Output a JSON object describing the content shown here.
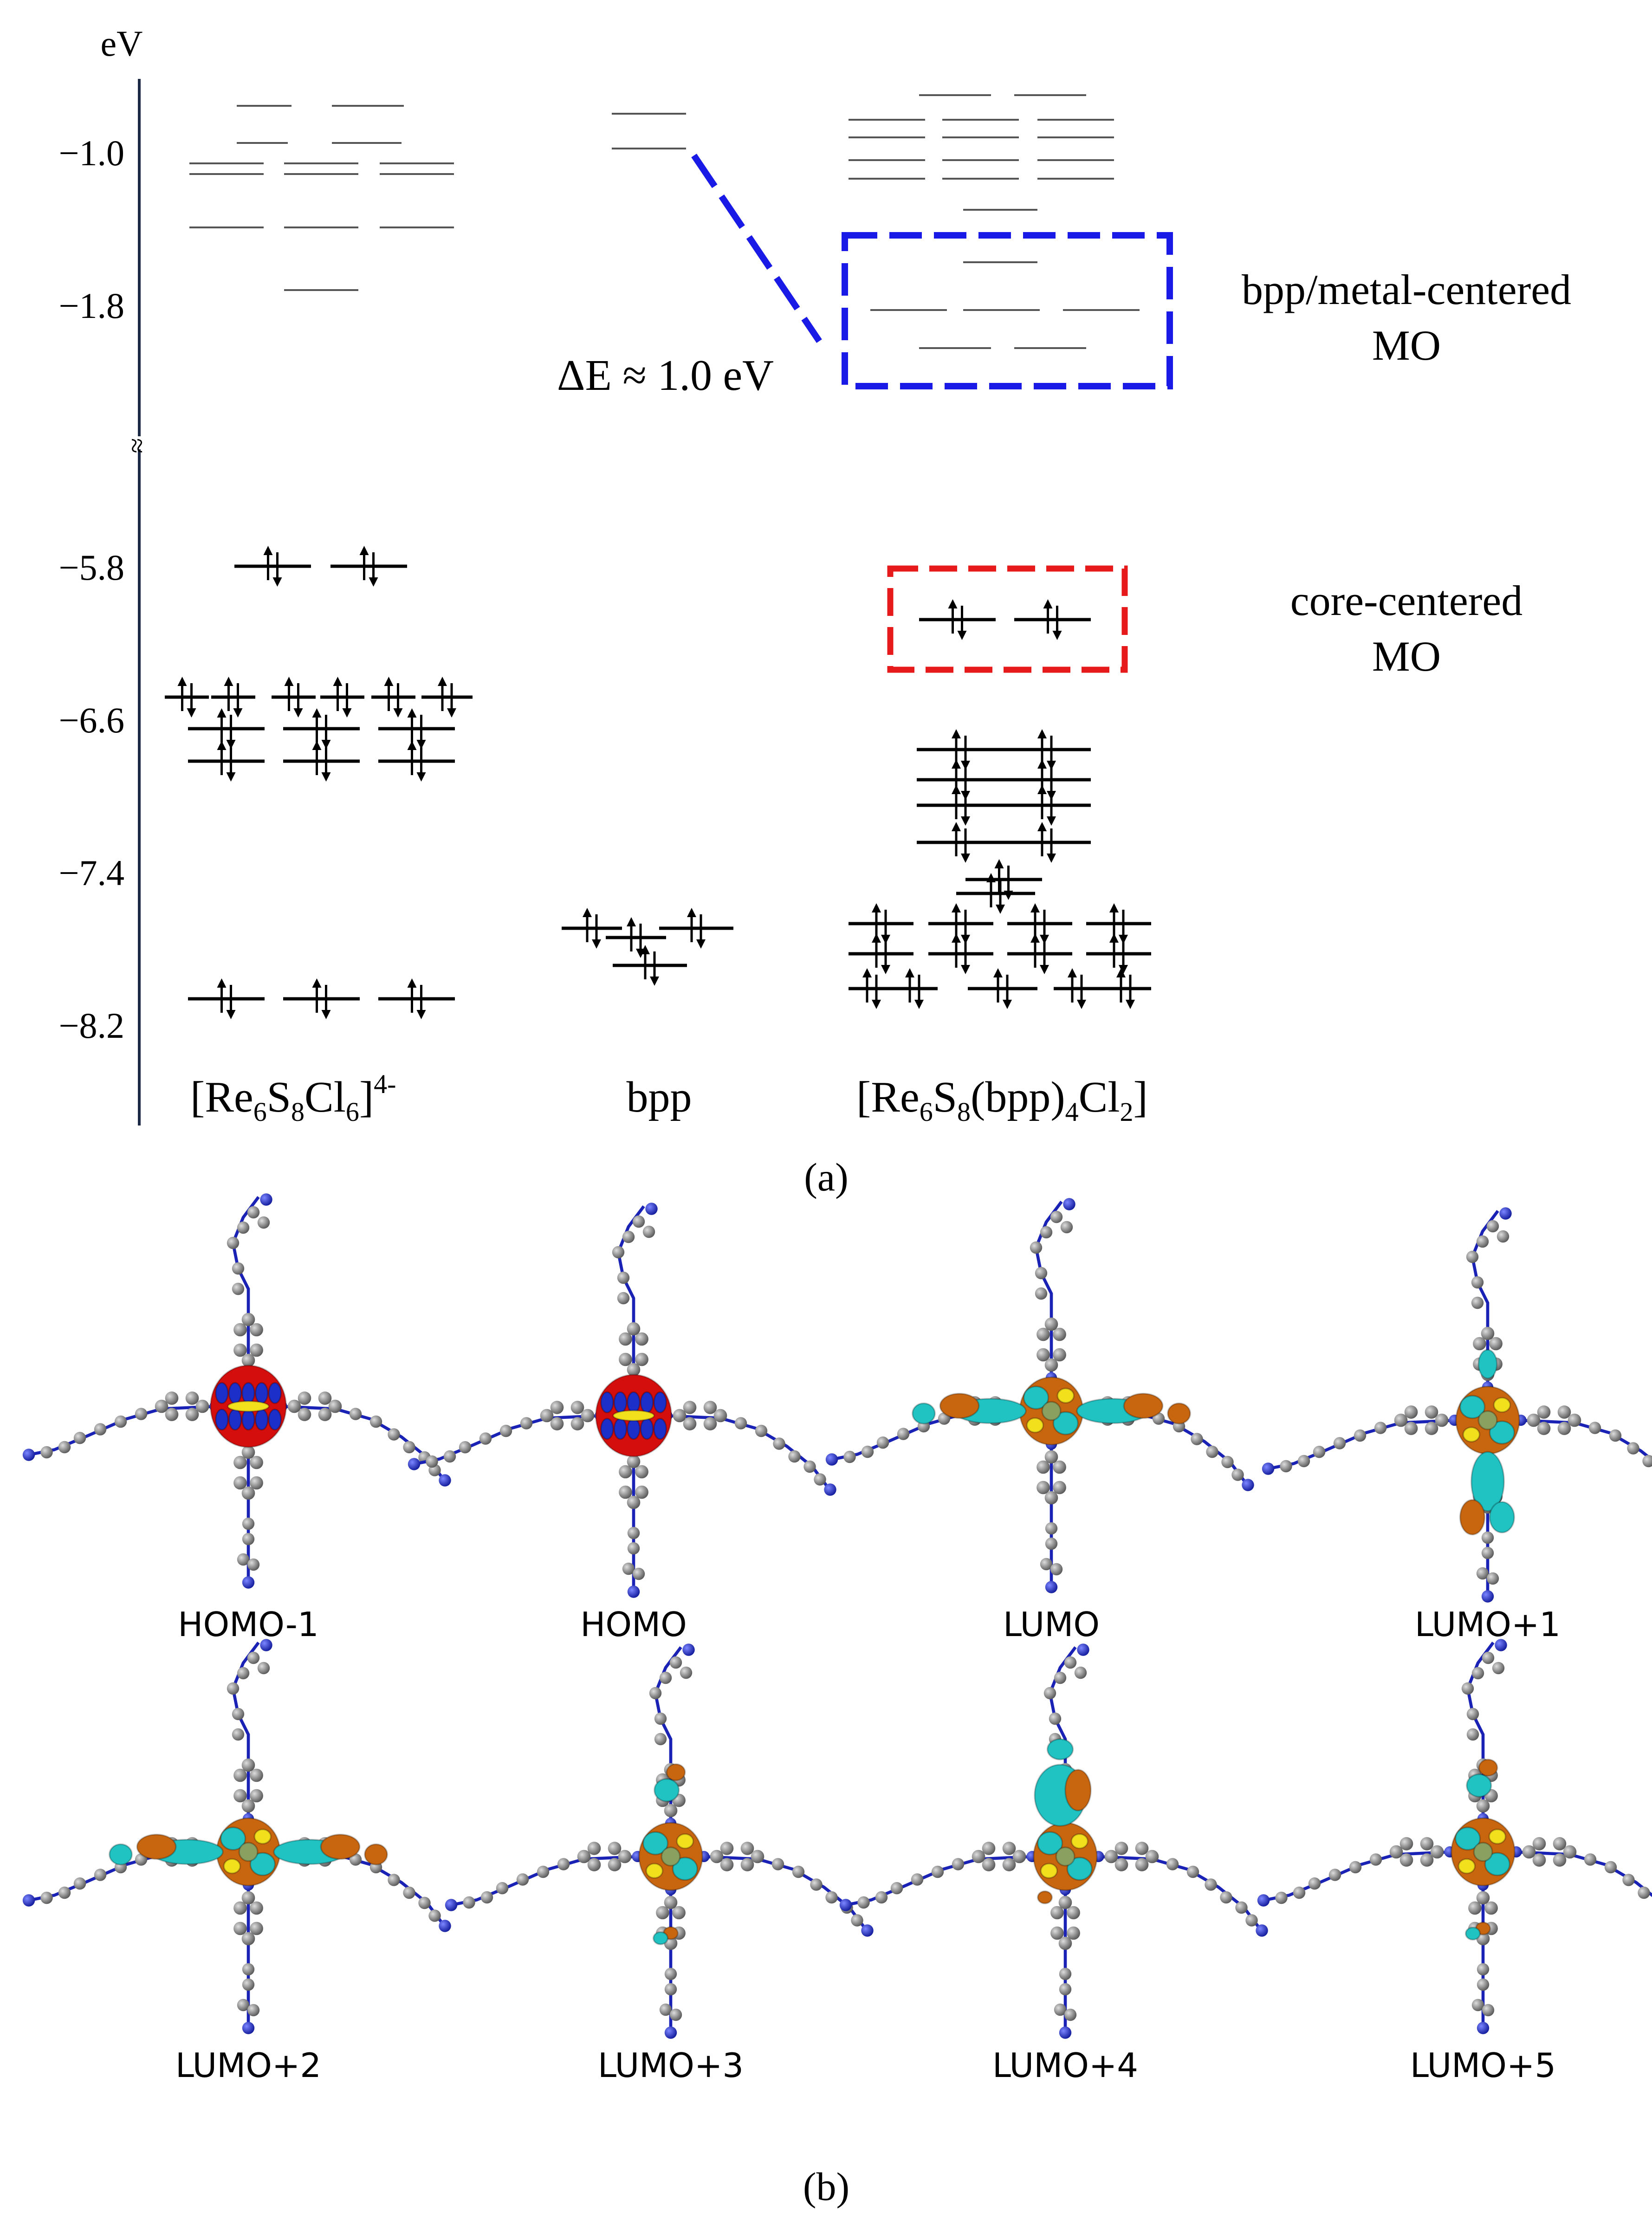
{
  "panel_a": {
    "axis_unit": "eV",
    "ticks": [
      "−1.0",
      "−1.8",
      "−5.8",
      "−6.6",
      "−7.4",
      "−8.2"
    ],
    "tick_values": [
      -1.0,
      -1.8,
      -5.8,
      -6.6,
      -7.4,
      -8.2
    ],
    "axis_break_symbol": "≈",
    "columns": [
      {
        "label_text": "[Re6S8Cl6]4-"
      },
      {
        "label_text": "bpp"
      },
      {
        "label_text": "[Re6S8(bpp)4Cl2]"
      }
    ],
    "delta_e": "ΔE ≈ 1.0 eV",
    "box_labels": {
      "blue_line1": "bpp/metal-centered",
      "blue_line2": "MO",
      "red_line1": "core-centered",
      "red_line2": "MO"
    },
    "colors": {
      "blue_box": "#1a1ae6",
      "red_box": "#e61a1a",
      "occupied": "#000000",
      "virtual": "#555555"
    },
    "caption": "(a)"
  },
  "panel_b": {
    "orbitals": [
      {
        "label": "HOMO-1",
        "type": "homo"
      },
      {
        "label": "HOMO",
        "type": "homo"
      },
      {
        "label": "LUMO",
        "type": "lumo-x"
      },
      {
        "label": "LUMO+1",
        "type": "lumo-y"
      },
      {
        "label": "LUMO+2",
        "type": "lumo-x"
      },
      {
        "label": "LUMO+3",
        "type": "lumo-c"
      },
      {
        "label": "LUMO+4",
        "type": "lumo-yc"
      },
      {
        "label": "LUMO+5",
        "type": "lumo-c"
      }
    ],
    "caption": "(b)",
    "colors": {
      "lobe_red": "#d40d0d",
      "lobe_blue": "#1c2fc9",
      "lobe_orange": "#c8650f",
      "lobe_cyan": "#20c2c2",
      "lobe_yellow": "#f2e01c",
      "carbon": "#8a8a8a",
      "nitrogen": "#2330c8"
    }
  }
}
